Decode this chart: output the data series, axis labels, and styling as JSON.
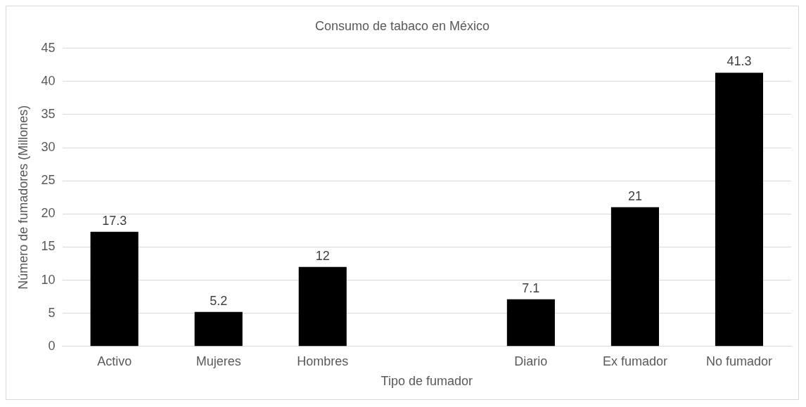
{
  "chart_data": {
    "type": "bar",
    "title": "Consumo de tabaco en México",
    "xlabel": "Tipo de fumador",
    "ylabel": "Número de fumadores (Millones)",
    "categories": [
      "Activo",
      "Mujeres",
      "Hombres",
      null,
      "Diario",
      "Ex fumador",
      "No fumador"
    ],
    "values": [
      17.3,
      5.2,
      12,
      null,
      7.1,
      21,
      41.3
    ],
    "color": "#000000",
    "ylim": [
      0,
      45
    ],
    "yticks": [
      0,
      5,
      10,
      15,
      20,
      25,
      30,
      35,
      40,
      45
    ],
    "grid": "y",
    "legend": false,
    "data_labels": true
  }
}
